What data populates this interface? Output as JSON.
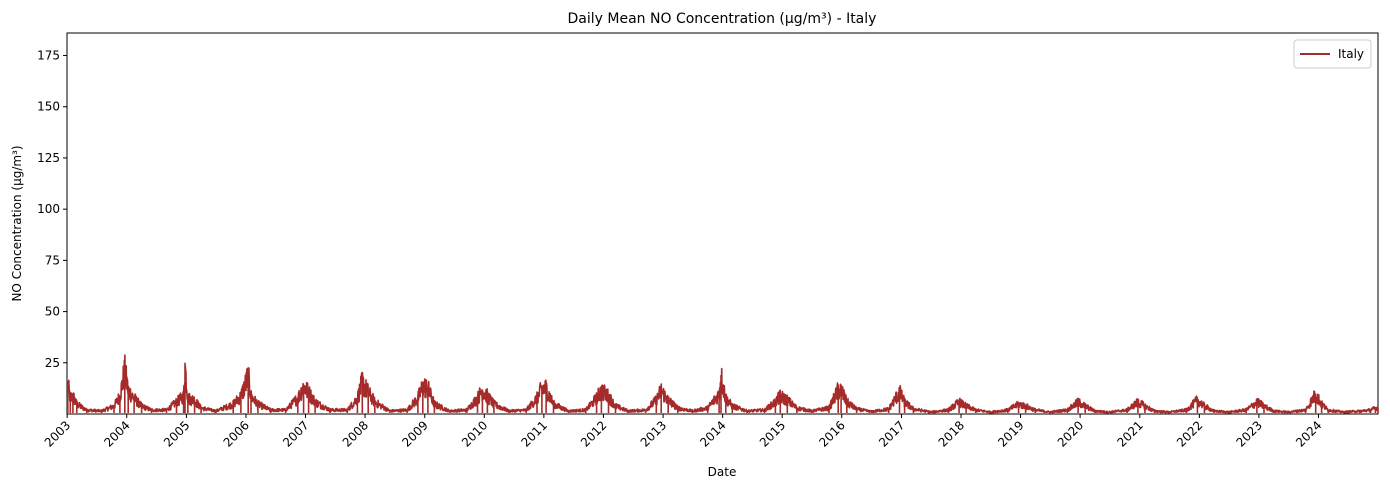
{
  "chart_data": {
    "type": "line",
    "title": "Daily Mean NO Concentration (µg/m³) - Italy",
    "xlabel": "Date",
    "ylabel": "NO Concentration (µg/m³)",
    "x_range": [
      "2002-12-31",
      "2024-12-31"
    ],
    "ylim": [
      0,
      186
    ],
    "y_ticks": [
      25,
      50,
      75,
      100,
      125,
      150,
      175
    ],
    "x_tick_labels": [
      "2003",
      "2004",
      "2005",
      "2006",
      "2007",
      "2008",
      "2009",
      "2010",
      "2011",
      "2012",
      "2013",
      "2014",
      "2015",
      "2016",
      "2017",
      "2018",
      "2019",
      "2020",
      "2021",
      "2022",
      "2023",
      "2024"
    ],
    "grid": false,
    "legend_position": "top-right",
    "series": [
      {
        "name": "Italy",
        "color": "#a52a2a",
        "approximate_points": [
          [
            "2003-01-05",
            15
          ],
          [
            "2003-01-20",
            8
          ],
          [
            "2003-02-05",
            9
          ],
          [
            "2003-03-01",
            5
          ],
          [
            "2003-05-01",
            2
          ],
          [
            "2003-08-01",
            1.5
          ],
          [
            "2003-10-15",
            4
          ],
          [
            "2003-11-20",
            9
          ],
          [
            "2003-12-20",
            22
          ],
          [
            "2004-01-10",
            12
          ],
          [
            "2004-02-15",
            8
          ],
          [
            "2004-04-01",
            4
          ],
          [
            "2004-06-01",
            2
          ],
          [
            "2004-09-01",
            2
          ],
          [
            "2004-11-01",
            6
          ],
          [
            "2004-12-15",
            9
          ],
          [
            "2004-12-23",
            25
          ],
          [
            "2005-01-10",
            8
          ],
          [
            "2005-02-20",
            7
          ],
          [
            "2005-04-01",
            3
          ],
          [
            "2005-07-01",
            1.5
          ],
          [
            "2005-10-15",
            5
          ],
          [
            "2005-12-01",
            9
          ],
          [
            "2006-01-15",
            19
          ],
          [
            "2006-02-01",
            9
          ],
          [
            "2006-03-15",
            5
          ],
          [
            "2006-06-01",
            2
          ],
          [
            "2006-09-01",
            2
          ],
          [
            "2006-11-15",
            8
          ],
          [
            "2006-12-20",
            14
          ],
          [
            "2007-01-20",
            11
          ],
          [
            "2007-03-01",
            6
          ],
          [
            "2007-06-01",
            2
          ],
          [
            "2007-09-15",
            2
          ],
          [
            "2007-11-15",
            8
          ],
          [
            "2007-12-15",
            16
          ],
          [
            "2008-01-20",
            11
          ],
          [
            "2008-03-01",
            6
          ],
          [
            "2008-06-01",
            1.5
          ],
          [
            "2008-09-15",
            2
          ],
          [
            "2008-11-20",
            8
          ],
          [
            "2008-12-20",
            14
          ],
          [
            "2009-01-20",
            13
          ],
          [
            "2009-03-01",
            5
          ],
          [
            "2009-06-01",
            1.5
          ],
          [
            "2009-09-15",
            2
          ],
          [
            "2009-11-20",
            8
          ],
          [
            "2009-12-20",
            12
          ],
          [
            "2010-01-20",
            9
          ],
          [
            "2010-03-01",
            5
          ],
          [
            "2010-06-01",
            1.5
          ],
          [
            "2010-09-15",
            2
          ],
          [
            "2010-11-20",
            8
          ],
          [
            "2010-12-20",
            13
          ],
          [
            "2011-01-15",
            13
          ],
          [
            "2011-03-01",
            5
          ],
          [
            "2011-06-01",
            1.5
          ],
          [
            "2011-09-15",
            2
          ],
          [
            "2011-11-20",
            8
          ],
          [
            "2011-12-20",
            12
          ],
          [
            "2012-02-01",
            9
          ],
          [
            "2012-03-15",
            4
          ],
          [
            "2012-06-01",
            1.5
          ],
          [
            "2012-09-15",
            2
          ],
          [
            "2012-11-20",
            7
          ],
          [
            "2012-12-20",
            12
          ],
          [
            "2013-02-01",
            7
          ],
          [
            "2013-04-01",
            3
          ],
          [
            "2013-07-01",
            1.5
          ],
          [
            "2013-10-01",
            3
          ],
          [
            "2013-12-10",
            10
          ],
          [
            "2013-12-22",
            19
          ],
          [
            "2014-01-20",
            8
          ],
          [
            "2014-03-01",
            4
          ],
          [
            "2014-06-01",
            1.5
          ],
          [
            "2014-09-15",
            2
          ],
          [
            "2014-11-20",
            6
          ],
          [
            "2014-12-20",
            9
          ],
          [
            "2015-02-01",
            7
          ],
          [
            "2015-04-01",
            3
          ],
          [
            "2015-07-01",
            1.5
          ],
          [
            "2015-10-15",
            3
          ],
          [
            "2015-12-10",
            12
          ],
          [
            "2015-12-28",
            12
          ],
          [
            "2016-02-01",
            6
          ],
          [
            "2016-04-01",
            2.5
          ],
          [
            "2016-07-01",
            1.2
          ],
          [
            "2016-10-15",
            2.5
          ],
          [
            "2016-12-20",
            11
          ],
          [
            "2017-01-20",
            6
          ],
          [
            "2017-03-15",
            2.5
          ],
          [
            "2017-07-01",
            1
          ],
          [
            "2017-10-15",
            2
          ],
          [
            "2017-12-20",
            6
          ],
          [
            "2018-02-01",
            4
          ],
          [
            "2018-04-01",
            2
          ],
          [
            "2018-07-01",
            1
          ],
          [
            "2018-10-15",
            2
          ],
          [
            "2018-12-20",
            5
          ],
          [
            "2019-02-01",
            4
          ],
          [
            "2019-04-01",
            2
          ],
          [
            "2019-07-01",
            1
          ],
          [
            "2019-10-15",
            2
          ],
          [
            "2019-12-20",
            6
          ],
          [
            "2020-02-01",
            4
          ],
          [
            "2020-04-01",
            1.5
          ],
          [
            "2020-07-01",
            1
          ],
          [
            "2020-10-15",
            2
          ],
          [
            "2020-12-20",
            6
          ],
          [
            "2021-02-01",
            4
          ],
          [
            "2021-04-01",
            1.5
          ],
          [
            "2021-07-01",
            1
          ],
          [
            "2021-10-15",
            2
          ],
          [
            "2021-12-20",
            7
          ],
          [
            "2022-02-01",
            4
          ],
          [
            "2022-04-01",
            1.5
          ],
          [
            "2022-07-01",
            1
          ],
          [
            "2022-10-15",
            2
          ],
          [
            "2022-12-20",
            6
          ],
          [
            "2023-02-01",
            4
          ],
          [
            "2023-04-01",
            1.5
          ],
          [
            "2023-07-01",
            1
          ],
          [
            "2023-10-15",
            2
          ],
          [
            "2023-12-15",
            10
          ],
          [
            "2024-01-20",
            5
          ],
          [
            "2024-03-01",
            2
          ],
          [
            "2024-06-01",
            1
          ],
          [
            "2024-09-15",
            1.5
          ],
          [
            "2024-11-15",
            2
          ],
          [
            "2024-12-15",
            3
          ],
          [
            "2024-12-31",
            3
          ]
        ]
      }
    ]
  }
}
